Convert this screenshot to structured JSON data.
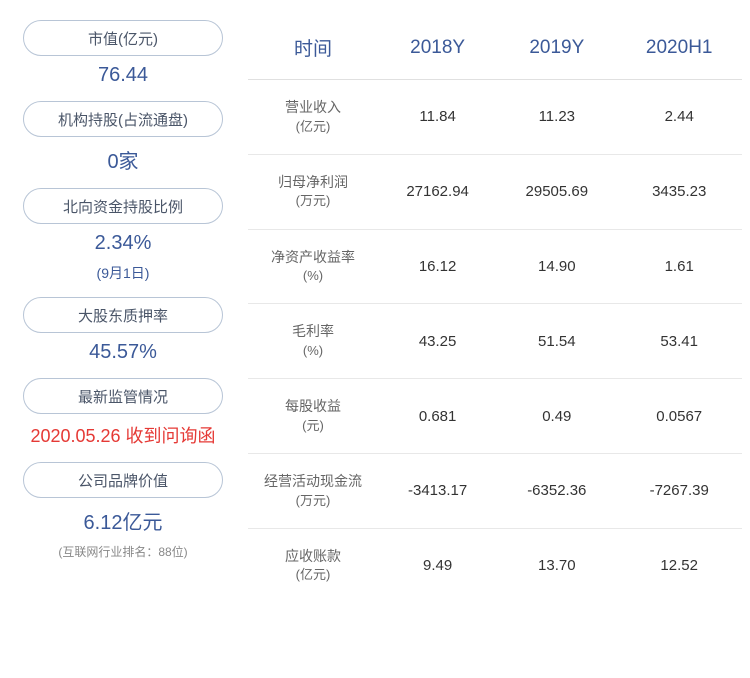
{
  "left": {
    "items": [
      {
        "label": "市值(亿元)",
        "value": "76.44",
        "color": "blue"
      },
      {
        "label": "机构持股(占流通盘)",
        "value": "0家",
        "color": "blue"
      },
      {
        "label": "北向资金持股比例",
        "value": "2.34%",
        "sub": "(9月1日)",
        "color": "blue"
      },
      {
        "label": "大股东质押率",
        "value": "45.57%",
        "color": "blue"
      },
      {
        "label": "最新监管情况",
        "value": "2020.05.26 收到问询函",
        "color": "red"
      },
      {
        "label": "公司品牌价值",
        "value": "6.12亿元",
        "sub": "(互联网行业排名：88位)",
        "color": "blue",
        "subgray": true
      }
    ]
  },
  "table": {
    "headers": [
      "时间",
      "2018Y",
      "2019Y",
      "2020H1"
    ],
    "rows": [
      {
        "label": "营业收入",
        "unit": "(亿元)",
        "v": [
          "11.84",
          "11.23",
          "2.44"
        ]
      },
      {
        "label": "归母净利润",
        "unit": "(万元)",
        "v": [
          "27162.94",
          "29505.69",
          "3435.23"
        ]
      },
      {
        "label": "净资产收益率",
        "unit": "(%)",
        "v": [
          "16.12",
          "14.90",
          "1.61"
        ]
      },
      {
        "label": "毛利率",
        "unit": "(%)",
        "v": [
          "43.25",
          "51.54",
          "53.41"
        ]
      },
      {
        "label": "每股收益",
        "unit": "(元)",
        "v": [
          "0.681",
          "0.49",
          "0.0567"
        ]
      },
      {
        "label": "经营活动现金流",
        "unit": "(万元)",
        "v": [
          "-3413.17",
          "-6352.36",
          "-7267.39"
        ]
      },
      {
        "label": "应收账款",
        "unit": "(亿元)",
        "v": [
          "9.49",
          "13.70",
          "12.52"
        ]
      }
    ]
  },
  "colors": {
    "blue": "#3b5998",
    "red": "#e53935",
    "border": "#b8c5d6",
    "text": "#4a5568",
    "gray": "#888"
  }
}
